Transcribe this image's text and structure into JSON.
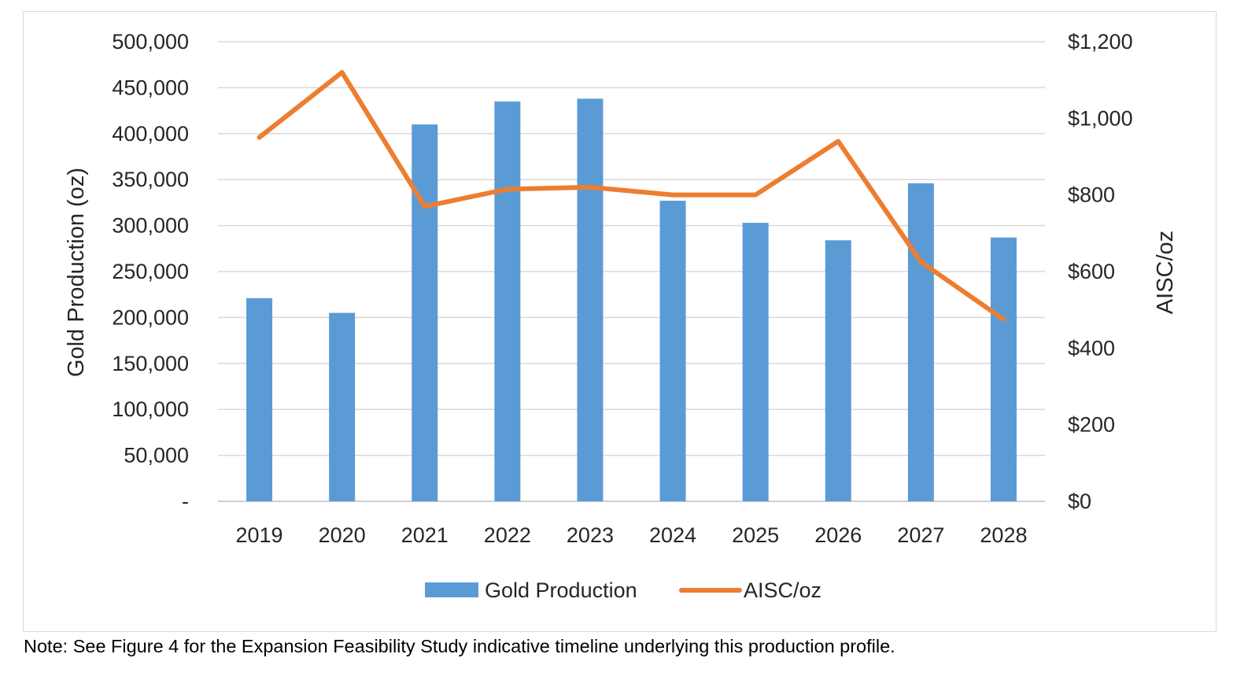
{
  "chart_data": {
    "type": "bar+line",
    "categories": [
      "2019",
      "2020",
      "2021",
      "2022",
      "2023",
      "2024",
      "2025",
      "2026",
      "2027",
      "2028"
    ],
    "series": [
      {
        "name": "Gold Production",
        "type": "bar",
        "axis": "left",
        "color": "#5b9bd5",
        "values": [
          221000,
          205000,
          410000,
          435000,
          438000,
          327000,
          303000,
          284000,
          346000,
          287000
        ]
      },
      {
        "name": "AISC/oz",
        "type": "line",
        "axis": "right",
        "color": "#ed7d31",
        "values": [
          950,
          1120,
          770,
          815,
          820,
          800,
          800,
          940,
          625,
          475
        ]
      }
    ],
    "left_axis": {
      "title": "Gold Production (oz)",
      "range": [
        0,
        500000
      ],
      "ticks": [
        0,
        50000,
        100000,
        150000,
        200000,
        250000,
        300000,
        350000,
        400000,
        450000,
        500000
      ],
      "tick_labels": [
        "-",
        "50,000",
        "100,000",
        "150,000",
        "200,000",
        "250,000",
        "300,000",
        "350,000",
        "400,000",
        "450,000",
        "500,000"
      ]
    },
    "right_axis": {
      "title": "AISC/oz",
      "range": [
        0,
        1200
      ],
      "ticks": [
        0,
        200,
        400,
        600,
        800,
        1000,
        1200
      ],
      "tick_labels": [
        "$0",
        "$200",
        "$400",
        "$600",
        "$800",
        "$1,000",
        "$1,200"
      ]
    },
    "grid": true,
    "legend": {
      "placement": "bottom",
      "entries": [
        "Gold Production",
        "AISC/oz"
      ]
    }
  },
  "note": "Note: See Figure 4 for the Expansion Feasibility Study indicative timeline underlying this production profile."
}
